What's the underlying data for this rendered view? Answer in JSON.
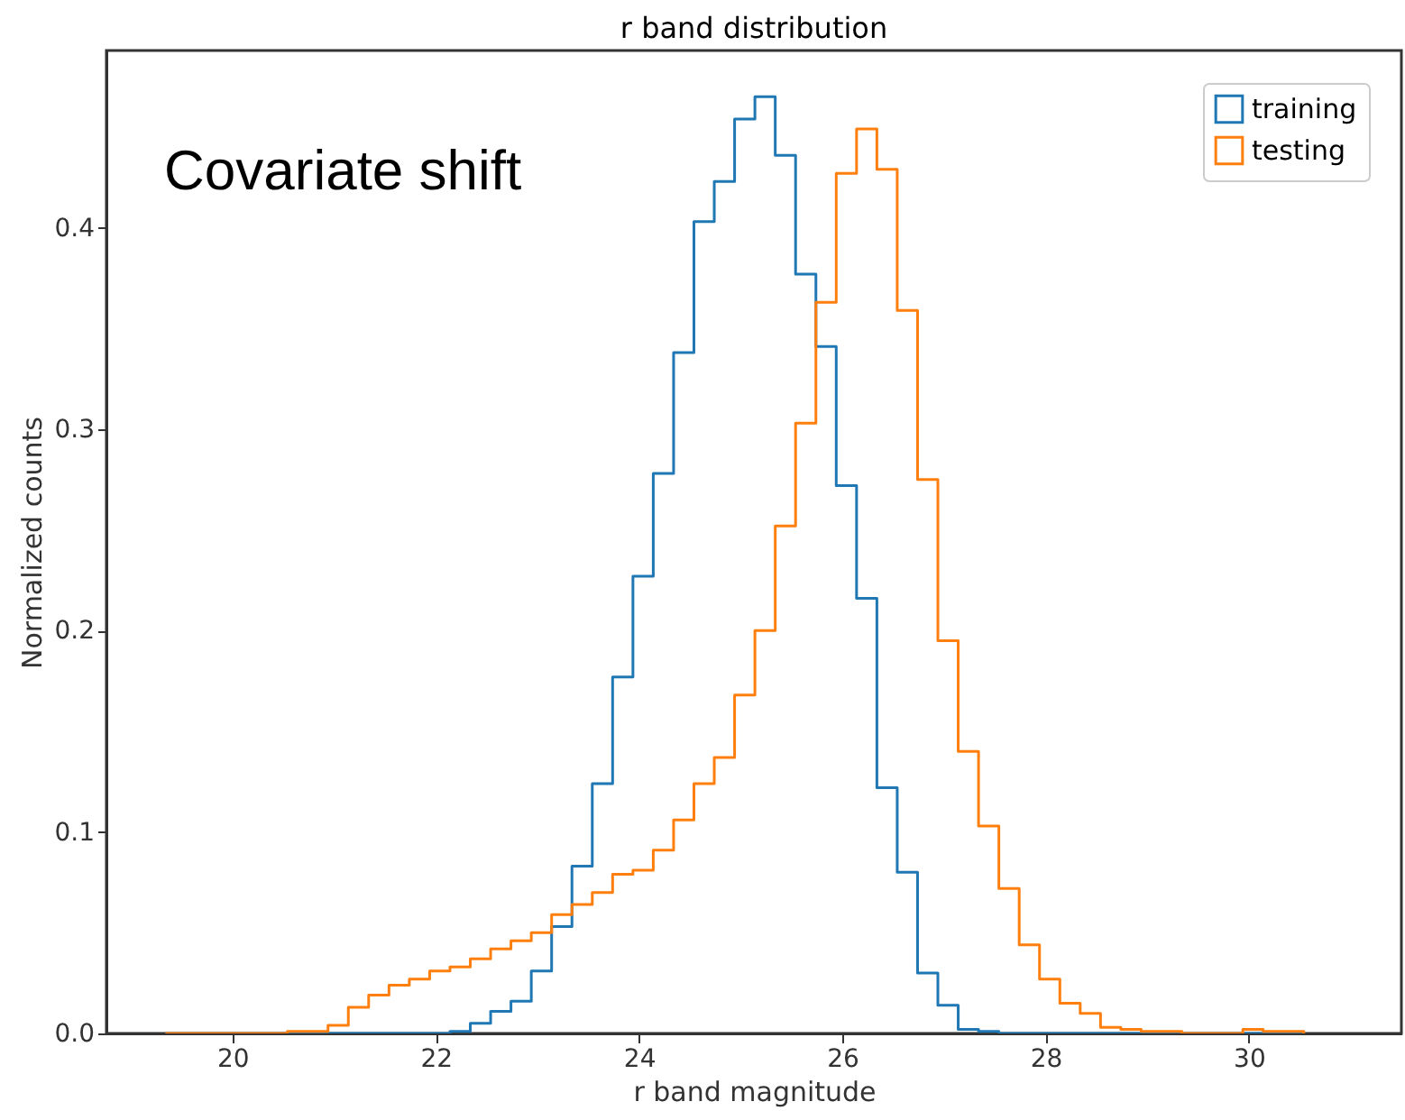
{
  "chart_data": {
    "type": "histogram",
    "title": "r band distribution",
    "xlabel": "r band magnitude",
    "ylabel": "Normalized counts",
    "annotations": [
      "Covariate shift"
    ],
    "bins": [
      19.34,
      19.54,
      19.74,
      19.94,
      20.14,
      20.34,
      20.54,
      20.74,
      20.94,
      21.14,
      21.34,
      21.54,
      21.74,
      21.94,
      22.14,
      22.34,
      22.54,
      22.74,
      22.94,
      23.14,
      23.34,
      23.54,
      23.74,
      23.94,
      24.14,
      24.34,
      24.54,
      24.74,
      24.94,
      25.14,
      25.34,
      25.54,
      25.74,
      25.94,
      26.14,
      26.34,
      26.54,
      26.74,
      26.94,
      27.14,
      27.34,
      27.54,
      27.74,
      27.94,
      28.14,
      28.34,
      28.54,
      28.74,
      28.94,
      29.14,
      29.34,
      29.54,
      29.74,
      29.94,
      30.14,
      30.34,
      30.54
    ],
    "series": [
      {
        "name": "training",
        "color": "#1f77b4",
        "values": [
          0,
          0,
          0,
          0,
          0,
          0,
          0,
          0,
          0,
          0,
          0,
          0,
          0,
          0,
          0.001,
          0.005,
          0.011,
          0.016,
          0.031,
          0.053,
          0.083,
          0.124,
          0.177,
          0.227,
          0.278,
          0.338,
          0.403,
          0.423,
          0.454,
          0.465,
          0.436,
          0.377,
          0.341,
          0.272,
          0.216,
          0.122,
          0.08,
          0.03,
          0.014,
          0.002,
          0.001,
          0,
          0,
          0,
          0,
          0,
          0,
          0,
          0,
          0,
          0,
          0,
          0,
          0,
          0,
          0
        ]
      },
      {
        "name": "testing",
        "color": "#ff7f0e",
        "values": [
          0,
          0,
          0,
          0,
          0,
          0,
          0.001,
          0.001,
          0.004,
          0.013,
          0.019,
          0.024,
          0.027,
          0.031,
          0.033,
          0.037,
          0.042,
          0.046,
          0.05,
          0.059,
          0.064,
          0.07,
          0.079,
          0.081,
          0.091,
          0.106,
          0.124,
          0.137,
          0.168,
          0.2,
          0.252,
          0.303,
          0.363,
          0.427,
          0.449,
          0.429,
          0.359,
          0.275,
          0.195,
          0.14,
          0.103,
          0.072,
          0.044,
          0.027,
          0.015,
          0.01,
          0.003,
          0.002,
          0.001,
          0.001,
          0,
          0,
          0,
          0.002,
          0.001,
          0.001
        ]
      }
    ],
    "xlim": [
      18.76,
      31.5
    ],
    "ylim": [
      0,
      0.488
    ],
    "xticks": [
      20,
      22,
      24,
      26,
      28,
      30
    ],
    "yticks": [
      {
        "value": 0,
        "label": "0.0"
      },
      0.1,
      0.2,
      0.3,
      0.4
    ],
    "grid": false,
    "legend": "top right"
  }
}
